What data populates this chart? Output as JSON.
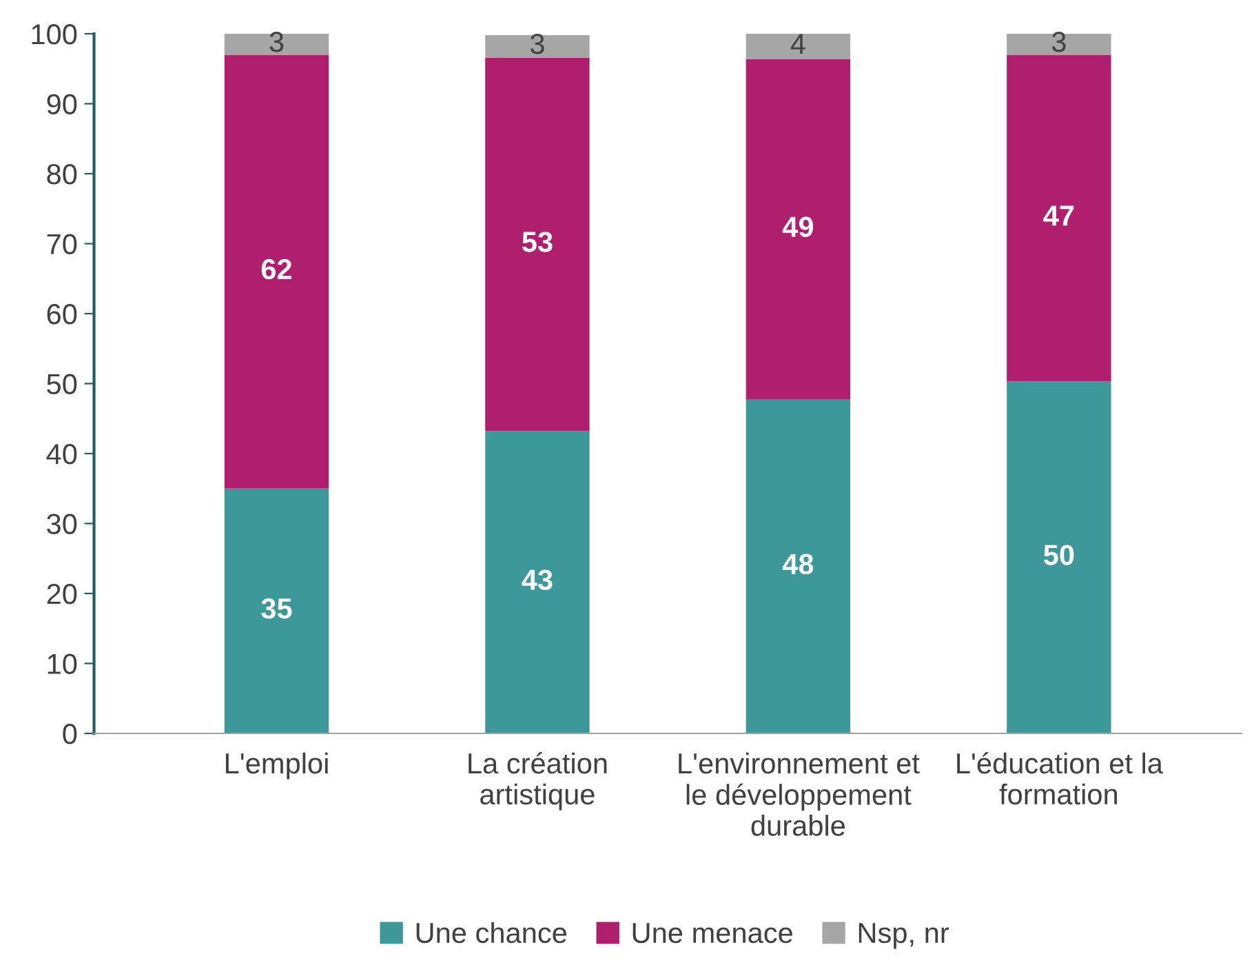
{
  "chart_data": {
    "type": "bar",
    "stacked": true,
    "categories": [
      "L'emploi",
      "La création\nartistique",
      "L'environnement et\nle développement\ndurable",
      "L'éducation et la\nformation"
    ],
    "series": [
      {
        "name": "Une chance",
        "color": "#3d9999",
        "values": [
          35.0,
          43.2,
          47.7,
          50.3
        ],
        "value_labels": [
          "35",
          "43",
          "48",
          "50"
        ]
      },
      {
        "name": "Une menace",
        "color": "#b01f6e",
        "values": [
          62.0,
          53.4,
          48.7,
          46.7
        ],
        "value_labels": [
          "62",
          "53",
          "49",
          "47"
        ]
      },
      {
        "name": "Nsp, nr",
        "color": "#a6a6a6",
        "values": [
          3.0,
          3.2,
          3.6,
          3.0
        ],
        "value_labels": [
          "3",
          "3",
          "4",
          "3"
        ]
      }
    ],
    "ylim": [
      0,
      100
    ],
    "yticks": [
      0,
      10,
      20,
      30,
      40,
      50,
      60,
      70,
      80,
      90,
      100
    ],
    "grid": false,
    "legend": "bottom"
  }
}
